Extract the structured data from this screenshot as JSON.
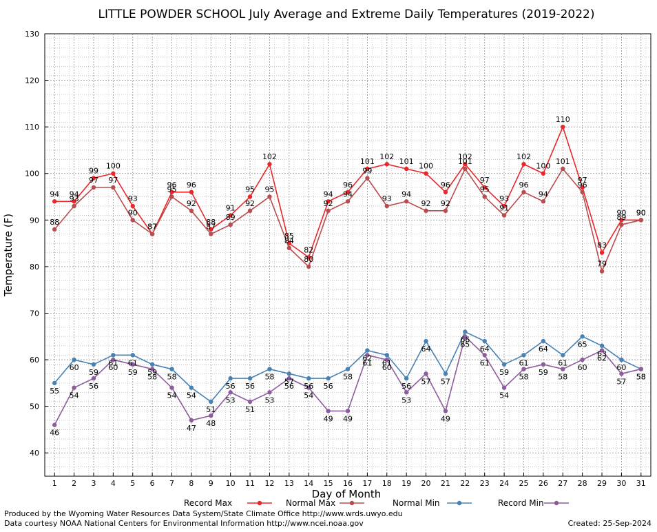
{
  "chart_data": {
    "type": "line",
    "title": "LITTLE POWDER SCHOOL July Average and Extreme Daily Temperatures (2019-2022)",
    "xlabel": "Day of Month",
    "ylabel": "Temperature (F)",
    "ylim": [
      35,
      130
    ],
    "y_ticks": [
      40,
      50,
      60,
      70,
      80,
      90,
      100,
      110,
      120,
      130
    ],
    "x": [
      1,
      2,
      3,
      4,
      5,
      6,
      7,
      8,
      9,
      10,
      11,
      12,
      13,
      14,
      15,
      16,
      17,
      18,
      19,
      20,
      21,
      22,
      23,
      24,
      25,
      26,
      27,
      28,
      29,
      30,
      31
    ],
    "grid": true,
    "legend_placement": "bottom",
    "series": [
      {
        "name": "Record Max",
        "color": "#e8262b",
        "values": [
          94,
          94,
          99,
          100,
          93,
          87,
          96,
          96,
          88,
          91,
          95,
          102,
          85,
          82,
          94,
          96,
          101,
          102,
          101,
          100,
          96,
          102,
          97,
          93,
          102,
          100,
          110,
          97,
          83,
          90,
          90
        ]
      },
      {
        "name": "Normal Max",
        "color": "#b84c4e",
        "values": [
          88,
          93,
          97,
          97,
          90,
          87,
          95,
          92,
          87,
          89,
          92,
          95,
          84,
          80,
          92,
          94,
          99,
          93,
          94,
          92,
          92,
          101,
          95,
          91,
          96,
          94,
          101,
          96,
          79,
          89,
          90
        ]
      },
      {
        "name": "Normal Min",
        "color": "#4682b4",
        "values": [
          55,
          60,
          59,
          61,
          61,
          59,
          58,
          54,
          51,
          56,
          56,
          58,
          57,
          56,
          56,
          58,
          62,
          61,
          56,
          64,
          57,
          66,
          64,
          59,
          61,
          64,
          61,
          65,
          63,
          60,
          58
        ]
      },
      {
        "name": "Record Min",
        "color": "#8c5c9c",
        "values": [
          46,
          54,
          56,
          60,
          59,
          58,
          54,
          47,
          48,
          53,
          51,
          53,
          56,
          54,
          49,
          49,
          61,
          60,
          53,
          57,
          49,
          65,
          61,
          54,
          58,
          59,
          58,
          60,
          62,
          57,
          58
        ]
      }
    ]
  },
  "footer": {
    "left_line1": "Produced by the Wyoming Water Resources Data System/State Climate Office http://www.wrds.uwyo.edu",
    "left_line2": "Data courtesy NOAA National Centers for Environmental Information http://www.ncei.noaa.gov",
    "right": "Created:  25-Sep-2024"
  }
}
